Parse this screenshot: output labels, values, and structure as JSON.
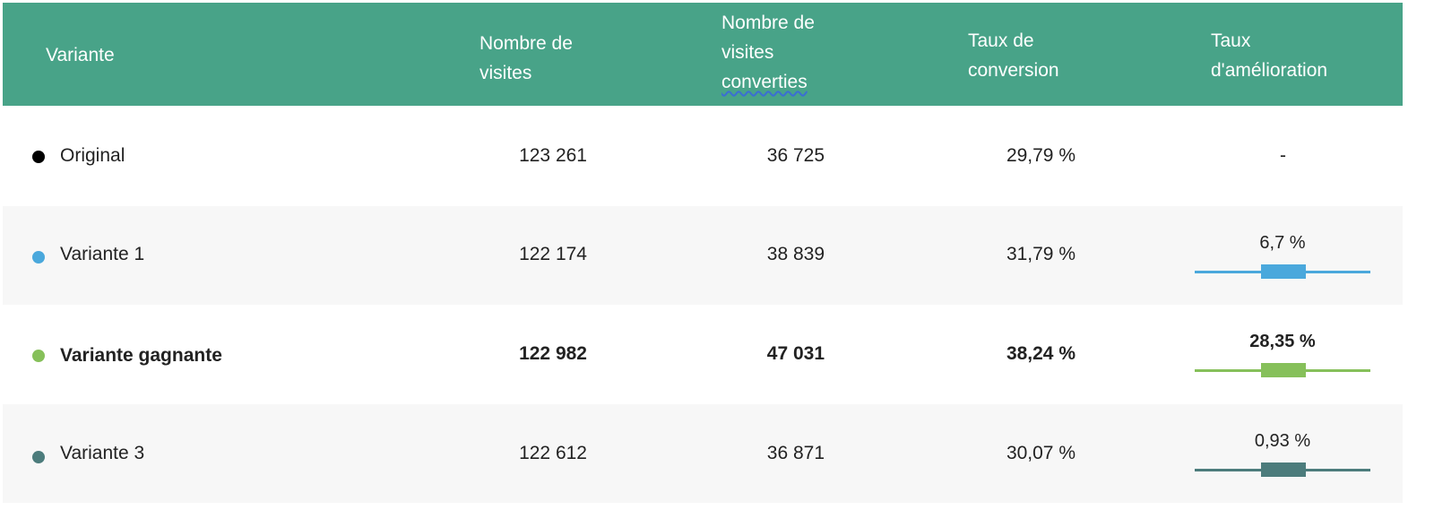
{
  "header": {
    "variante": "Variante",
    "visites_line1": "Nombre de",
    "visites_line2": "visites",
    "converties_line1": "Nombre de",
    "converties_line2": "visites",
    "converties_line3": "converties",
    "taux_line1": "Taux de",
    "taux_line2": "conversion",
    "amelioration_line1": "Taux",
    "amelioration_line2": "d'amélioration"
  },
  "colors": {
    "header_bg": "#48a388",
    "original": "#000000",
    "variante1": "#4aa8dc",
    "gagnante": "#86c05a",
    "variante3": "#4c7c7c"
  },
  "rows": [
    {
      "name": "Original",
      "visites": "123 261",
      "converties": "36 725",
      "taux": "29,79 %",
      "amelioration": "-"
    },
    {
      "name": "Variante 1",
      "visites": "122 174",
      "converties": "38 839",
      "taux": "31,79 %",
      "amelioration": "6,7 %"
    },
    {
      "name": "Variante gagnante",
      "visites": "122 982",
      "converties": "47 031",
      "taux": "38,24 %",
      "amelioration": "28,35 %"
    },
    {
      "name": "Variante 3",
      "visites": "122 612",
      "converties": "36 871",
      "taux": "30,07 %",
      "amelioration": "0,93 %"
    }
  ]
}
